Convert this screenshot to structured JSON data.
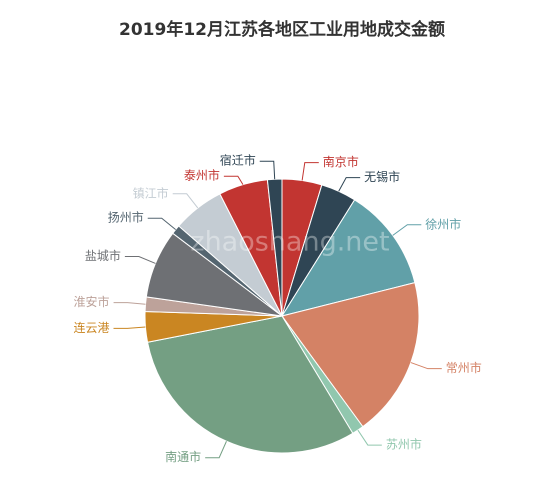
{
  "chart_data": {
    "type": "pie",
    "title": "2019年12月江苏各地区工业用地成交金额",
    "watermark": "zhaoshang.net",
    "categories": [
      "南京市",
      "无锡市",
      "徐州市",
      "常州市",
      "苏州市",
      "南通市",
      "连云港",
      "淮安市",
      "盐城市",
      "扬州市",
      "镇江市",
      "泰州市",
      "宿迁市"
    ],
    "values": [
      4.7,
      4.2,
      12.2,
      18.9,
      1.4,
      30.6,
      3.6,
      1.7,
      8.1,
      1.1,
      6.1,
      5.8,
      1.7
    ],
    "colors": [
      "#c23531",
      "#2f4554",
      "#61a0a8",
      "#d48265",
      "#91c7ae",
      "#749f83",
      "#ca8622",
      "#bda29a",
      "#6e7074",
      "#546570",
      "#c4ccd3",
      "#c23531",
      "#2f4554"
    ]
  }
}
